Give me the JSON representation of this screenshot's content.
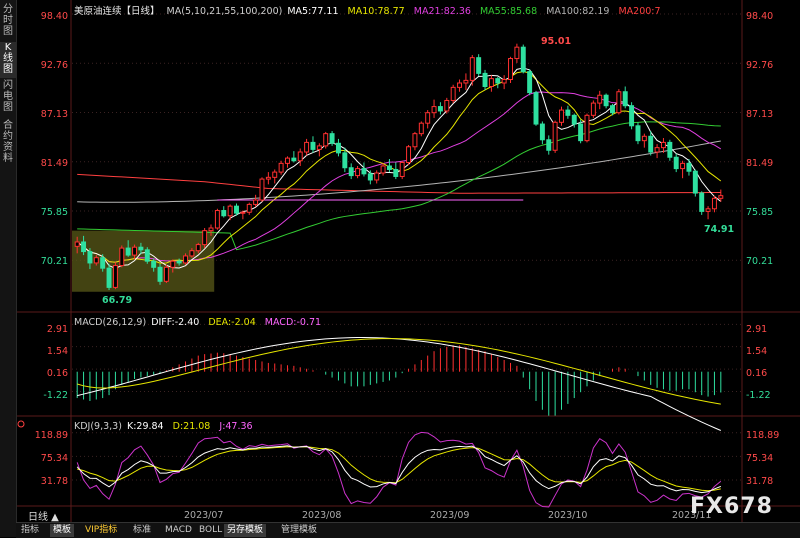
{
  "sidebar": {
    "tabs": [
      {
        "label": "分时图",
        "active": false
      },
      {
        "label": "K线图",
        "active": true
      },
      {
        "label": "闪电图",
        "active": false
      },
      {
        "label": "合约资料",
        "active": false
      }
    ]
  },
  "header": {
    "title": "美原油连续【日线】",
    "ma": [
      {
        "text": "MA(5,10,21,55,100,200)",
        "color": "#cfcfcf"
      },
      {
        "text": "MA5:77.11",
        "color": "#ffffff"
      },
      {
        "text": "MA10:78.77",
        "color": "#e6e600"
      },
      {
        "text": "MA21:82.36",
        "color": "#e040e0"
      },
      {
        "text": "MA55:85.68",
        "color": "#33cc33"
      },
      {
        "text": "MA100:82.19",
        "color": "#b4b4b4"
      },
      {
        "text": "MA200:7",
        "color": "#ff4040"
      }
    ],
    "macd": [
      {
        "text": "MACD(26,12,9)",
        "color": "#cfcfcf"
      },
      {
        "text": "DIFF:-2.40",
        "color": "#ffffff"
      },
      {
        "text": "DEA:-2.04",
        "color": "#e6e600"
      },
      {
        "text": "MACD:-0.71",
        "color": "#ff66ff"
      }
    ],
    "kdj": [
      {
        "text": "KDJ(9,3,3)",
        "color": "#cfcfcf"
      },
      {
        "text": "K:29.84",
        "color": "#ffffff"
      },
      {
        "text": "D:21.08",
        "color": "#e6e600"
      },
      {
        "text": "J:47.36",
        "color": "#ff66ff"
      }
    ]
  },
  "axes": {
    "price_ticks": [
      "98.40",
      "92.76",
      "87.13",
      "81.49",
      "75.85",
      "70.21"
    ],
    "macd_ticks": [
      "2.91",
      "1.54",
      "0.16",
      "-1.22"
    ],
    "kdj_ticks": [
      "118.89",
      "75.34",
      "31.78"
    ],
    "x_ticks": [
      "2023/07",
      "2023/08",
      "2023/09",
      "2023/10",
      "2023/11"
    ]
  },
  "annotations": {
    "high": "95.01",
    "low_left": "66.79",
    "low_right": "74.91"
  },
  "period": "日线 ▲",
  "toolbar": [
    "指标",
    "模板",
    "VIP指标",
    "标准",
    "MACD",
    "BOLL",
    "另存模板",
    "管理模板"
  ],
  "watermark": "FX678",
  "colors": {
    "up": "#ff3030",
    "down": "#2ee0a0",
    "bg": "#000000",
    "grid": "#3a2222"
  },
  "chart_data": {
    "type": "candlestick",
    "price_range": [
      66.0,
      98.4
    ],
    "ohlc": [
      [
        71.8,
        72.9,
        71.0,
        72.3
      ],
      [
        72.3,
        73.0,
        70.8,
        71.2
      ],
      [
        71.2,
        71.6,
        69.2,
        69.9
      ],
      [
        69.9,
        70.8,
        69.6,
        70.5
      ],
      [
        70.5,
        70.9,
        68.9,
        69.3
      ],
      [
        69.3,
        69.8,
        66.8,
        67.1
      ],
      [
        67.1,
        70.0,
        66.9,
        69.6
      ],
      [
        69.6,
        71.9,
        69.4,
        71.6
      ],
      [
        71.6,
        72.5,
        70.6,
        70.8
      ],
      [
        70.8,
        72.0,
        70.3,
        71.7
      ],
      [
        71.7,
        72.2,
        70.9,
        71.4
      ],
      [
        71.4,
        71.7,
        69.8,
        70.1
      ],
      [
        70.1,
        70.4,
        68.9,
        69.4
      ],
      [
        69.4,
        69.8,
        67.4,
        67.8
      ],
      [
        67.8,
        69.7,
        67.6,
        69.4
      ],
      [
        69.4,
        70.3,
        68.8,
        70.1
      ],
      [
        70.1,
        70.4,
        69.6,
        69.9
      ],
      [
        69.9,
        71.0,
        69.7,
        70.7
      ],
      [
        70.7,
        71.6,
        70.5,
        71.3
      ],
      [
        71.3,
        72.2,
        71.0,
        72.0
      ],
      [
        72.0,
        73.9,
        71.6,
        73.6
      ],
      [
        73.6,
        74.3,
        73.0,
        73.9
      ],
      [
        73.9,
        76.1,
        73.7,
        75.9
      ],
      [
        75.9,
        76.4,
        75.1,
        75.3
      ],
      [
        75.3,
        76.6,
        74.8,
        76.4
      ],
      [
        76.4,
        76.7,
        75.3,
        75.6
      ],
      [
        75.6,
        75.9,
        74.9,
        75.7
      ],
      [
        75.7,
        76.8,
        75.4,
        76.6
      ],
      [
        76.6,
        77.7,
        76.3,
        77.1
      ],
      [
        77.1,
        79.7,
        76.9,
        79.5
      ],
      [
        79.5,
        80.3,
        78.9,
        79.7
      ],
      [
        79.7,
        80.6,
        79.0,
        80.3
      ],
      [
        80.3,
        81.6,
        80.0,
        81.3
      ],
      [
        81.3,
        82.1,
        80.8,
        81.9
      ],
      [
        81.9,
        82.7,
        81.4,
        81.6
      ],
      [
        81.6,
        83.0,
        81.0,
        82.6
      ],
      [
        82.6,
        84.1,
        82.2,
        83.7
      ],
      [
        83.7,
        84.4,
        82.5,
        82.9
      ],
      [
        82.9,
        83.6,
        82.1,
        83.3
      ],
      [
        83.3,
        84.9,
        83.0,
        84.7
      ],
      [
        84.7,
        85.0,
        83.3,
        83.6
      ],
      [
        83.6,
        84.1,
        82.1,
        82.5
      ],
      [
        82.5,
        83.1,
        80.3,
        80.8
      ],
      [
        80.8,
        81.3,
        79.5,
        79.9
      ],
      [
        79.9,
        81.0,
        79.6,
        80.7
      ],
      [
        80.7,
        81.4,
        79.8,
        80.1
      ],
      [
        80.1,
        80.5,
        78.9,
        79.4
      ],
      [
        79.4,
        80.5,
        79.0,
        80.2
      ],
      [
        80.2,
        81.3,
        79.9,
        81.0
      ],
      [
        81.0,
        81.8,
        80.3,
        80.6
      ],
      [
        80.6,
        81.4,
        79.5,
        79.8
      ],
      [
        79.8,
        81.6,
        79.5,
        81.4
      ],
      [
        81.4,
        83.4,
        81.1,
        83.2
      ],
      [
        83.2,
        84.9,
        82.8,
        84.7
      ],
      [
        84.7,
        86.1,
        84.4,
        85.9
      ],
      [
        85.9,
        87.4,
        85.3,
        87.1
      ],
      [
        87.1,
        88.6,
        86.5,
        87.8
      ],
      [
        87.8,
        88.3,
        86.9,
        87.3
      ],
      [
        87.3,
        88.8,
        87.0,
        88.5
      ],
      [
        88.5,
        90.3,
        88.2,
        90.0
      ],
      [
        90.0,
        90.9,
        89.5,
        90.5
      ],
      [
        90.5,
        91.6,
        89.7,
        90.8
      ],
      [
        90.8,
        93.7,
        90.2,
        93.4
      ],
      [
        93.4,
        93.8,
        91.3,
        91.6
      ],
      [
        91.6,
        92.0,
        89.7,
        90.1
      ],
      [
        90.1,
        91.4,
        89.5,
        91.0
      ],
      [
        91.0,
        91.2,
        89.9,
        90.5
      ],
      [
        90.5,
        91.4,
        89.8,
        90.9
      ],
      [
        90.9,
        93.5,
        90.5,
        93.3
      ],
      [
        93.3,
        95.0,
        92.8,
        94.6
      ],
      [
        94.6,
        94.9,
        91.6,
        91.8
      ],
      [
        91.8,
        92.1,
        89.1,
        89.4
      ],
      [
        89.4,
        89.6,
        85.6,
        85.8
      ],
      [
        85.8,
        86.1,
        83.5,
        84.0
      ],
      [
        84.0,
        84.5,
        82.3,
        82.8
      ],
      [
        82.8,
        86.2,
        82.5,
        86.0
      ],
      [
        86.0,
        87.8,
        85.6,
        87.4
      ],
      [
        87.4,
        87.9,
        86.4,
        86.8
      ],
      [
        86.8,
        87.0,
        85.4,
        85.8
      ],
      [
        85.8,
        86.3,
        83.6,
        83.9
      ],
      [
        83.9,
        87.0,
        83.7,
        86.8
      ],
      [
        86.8,
        88.5,
        86.5,
        88.2
      ],
      [
        88.2,
        89.6,
        87.5,
        89.1
      ],
      [
        89.1,
        89.3,
        87.6,
        87.9
      ],
      [
        87.9,
        88.1,
        86.8,
        87.1
      ],
      [
        87.1,
        89.8,
        86.9,
        89.5
      ],
      [
        89.5,
        90.1,
        87.6,
        87.9
      ],
      [
        87.9,
        88.3,
        85.2,
        85.6
      ],
      [
        85.6,
        86.0,
        83.5,
        83.9
      ],
      [
        83.9,
        84.7,
        83.1,
        84.4
      ],
      [
        84.4,
        85.0,
        82.2,
        82.6
      ],
      [
        82.6,
        83.5,
        81.9,
        83.1
      ],
      [
        83.1,
        84.2,
        82.5,
        83.7
      ],
      [
        83.7,
        84.0,
        81.6,
        82.0
      ],
      [
        82.0,
        82.4,
        80.3,
        80.7
      ],
      [
        80.7,
        81.6,
        79.6,
        81.3
      ],
      [
        81.3,
        81.8,
        79.9,
        80.4
      ],
      [
        80.4,
        80.6,
        77.5,
        77.9
      ],
      [
        77.9,
        78.1,
        75.4,
        75.8
      ],
      [
        75.8,
        76.4,
        74.9,
        76.1
      ],
      [
        76.1,
        77.6,
        75.7,
        77.3
      ],
      [
        77.3,
        78.3,
        76.9,
        77.6
      ]
    ],
    "macd_hist": [
      -0.9,
      -0.95,
      -1.0,
      -0.95,
      -0.9,
      -0.8,
      -0.6,
      -0.45,
      -0.35,
      -0.25,
      -0.2,
      -0.15,
      -0.1,
      -0.05,
      0.05,
      0.15,
      0.25,
      0.35,
      0.45,
      0.55,
      0.6,
      0.62,
      0.65,
      0.63,
      0.6,
      0.55,
      0.5,
      0.45,
      0.4,
      0.35,
      0.3,
      0.28,
      0.25,
      0.22,
      0.2,
      0.15,
      0.1,
      0.05,
      0.0,
      -0.1,
      -0.2,
      -0.3,
      -0.4,
      -0.5,
      -0.5,
      -0.5,
      -0.45,
      -0.4,
      -0.35,
      -0.3,
      -0.2,
      -0.05,
      0.1,
      0.25,
      0.4,
      0.55,
      0.7,
      0.8,
      0.85,
      0.9,
      0.9,
      0.85,
      0.8,
      0.75,
      0.7,
      0.6,
      0.5,
      0.4,
      0.3,
      0.2,
      -0.2,
      -0.6,
      -1.0,
      -1.3,
      -1.5,
      -1.5,
      -1.3,
      -1.1,
      -0.9,
      -0.7,
      -0.5,
      -0.3,
      -0.15,
      0.0,
      0.1,
      0.15,
      0.1,
      0.0,
      -0.15,
      -0.3,
      -0.45,
      -0.55,
      -0.6,
      -0.65,
      -0.65,
      -0.6,
      -0.6,
      -0.7,
      -0.8,
      -0.85,
      -0.8,
      -0.71
    ],
    "macd_range": [
      -2.6,
      3.3
    ]
  }
}
